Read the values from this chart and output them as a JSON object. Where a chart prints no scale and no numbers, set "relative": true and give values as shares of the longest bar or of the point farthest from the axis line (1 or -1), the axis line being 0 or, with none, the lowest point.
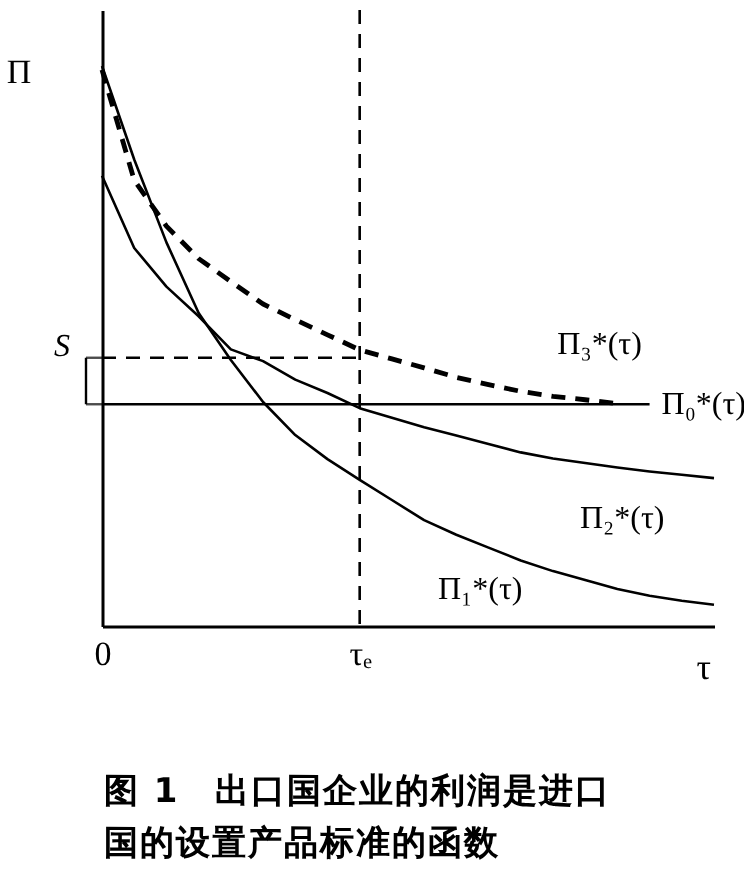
{
  "chart_data": {
    "type": "line",
    "relative": true,
    "title": "图 1　出口国企业的利润是进口国的设置产品标准的函数",
    "xlabel": "τ",
    "ylabel": "Π",
    "categories": [
      "0",
      null,
      null,
      null,
      null,
      null,
      null,
      null,
      "τₑ",
      null,
      null,
      null,
      null,
      null,
      null,
      null,
      null,
      null,
      null,
      null
    ],
    "series": [
      {
        "name": "Π₀*(τ)",
        "color": "#000000",
        "line_style": "solid",
        "values": [
          0.396,
          0.396,
          0.396,
          0.396,
          0.396,
          0.396,
          0.396,
          0.396,
          0.396,
          0.396,
          0.396,
          0.396,
          0.396,
          0.396,
          0.396,
          0.396,
          0.396,
          0.396,
          null,
          null
        ]
      },
      {
        "name": "Π₃*(τ)",
        "color": "#000000",
        "line_style": "dashed",
        "values": [
          0.993,
          0.796,
          0.714,
          0.656,
          0.615,
          0.575,
          0.547,
          0.52,
          0.493,
          0.477,
          0.461,
          0.444,
          0.431,
          0.419,
          0.41,
          0.404,
          0.397,
          null,
          null,
          null
        ]
      },
      {
        "name": "Π₂*(τ)",
        "color": "#000000",
        "line_style": "solid",
        "values": [
          0.804,
          0.675,
          0.606,
          0.553,
          0.494,
          0.473,
          0.44,
          0.416,
          0.389,
          0.372,
          0.355,
          0.34,
          0.325,
          0.31,
          0.299,
          0.291,
          0.283,
          0.276,
          0.27,
          0.264
        ]
      },
      {
        "name": "Π₁*(τ)",
        "color": "#000000",
        "line_style": "solid",
        "values": [
          1.0,
          0.833,
          0.685,
          0.559,
          0.475,
          0.4,
          0.341,
          0.298,
          0.261,
          0.225,
          0.189,
          0.163,
          0.14,
          0.117,
          0.098,
          0.082,
          0.066,
          0.054,
          0.045,
          0.038
        ]
      },
      {
        "color": "#000000",
        "line_style": "dashed",
        "values": [
          0.479,
          0.479,
          0.479,
          0.479,
          0.479,
          0.479,
          0.479,
          0.479,
          0.479,
          null,
          null,
          null,
          null,
          null,
          null,
          null,
          null,
          null,
          null,
          null
        ]
      }
    ],
    "ref_lines": [
      {
        "axis": "x",
        "value": "τₑ",
        "line_style": "dashed"
      }
    ],
    "annotations": [
      {
        "text": "S",
        "x": "0",
        "y": 0.479
      }
    ],
    "grid": false,
    "marker": "none"
  }
}
